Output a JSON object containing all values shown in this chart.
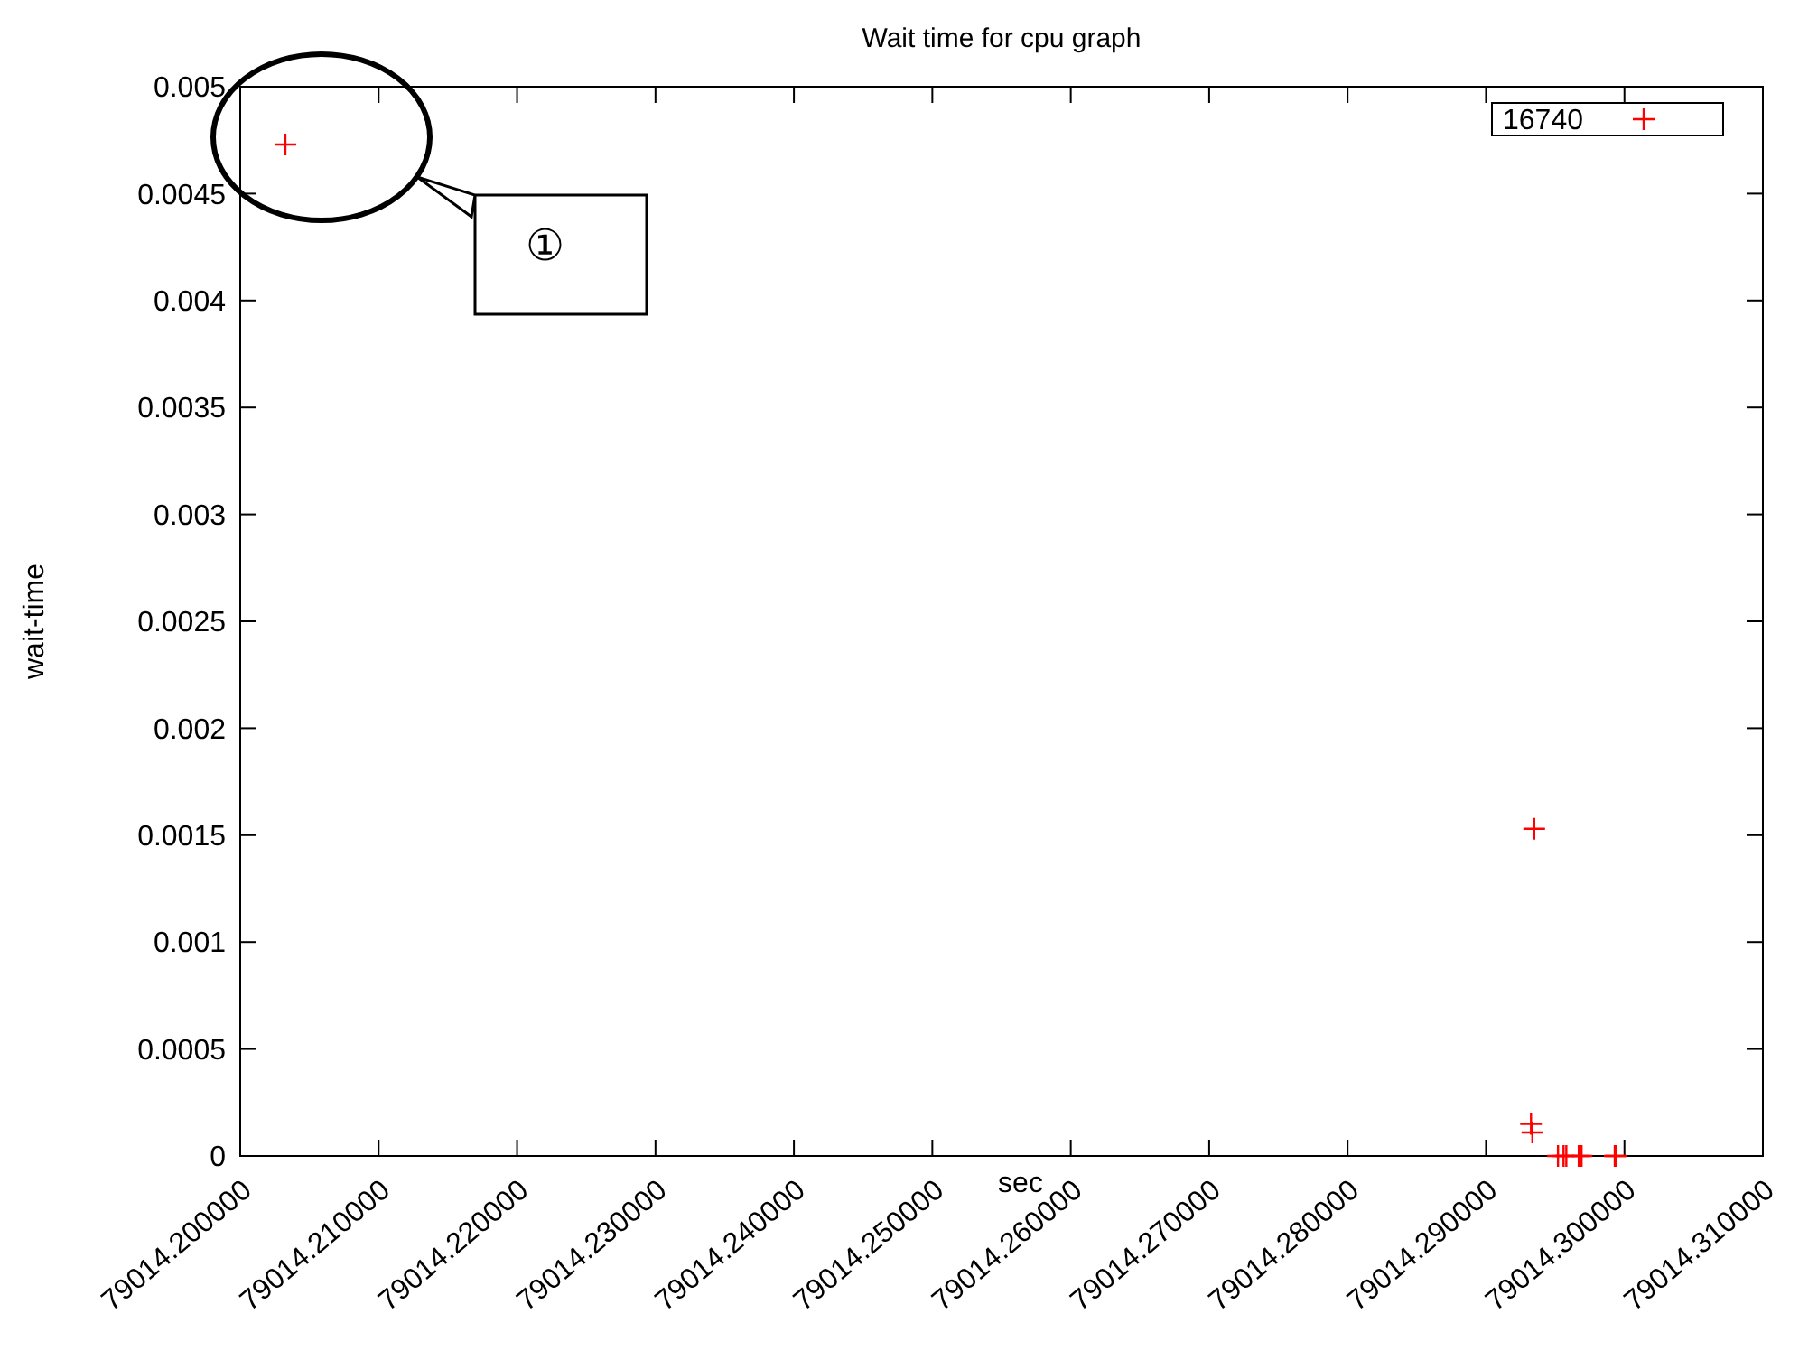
{
  "chart_data": {
    "type": "scatter",
    "title": "Wait time for cpu graph",
    "xlabel": "sec",
    "ylabel": "wait-time",
    "series": [
      {
        "name": "16740",
        "color": "#ff0000",
        "x": [
          79014.20326,
          79014.29348,
          79014.29325,
          79014.29335,
          79014.2952,
          79014.2956,
          79014.2958,
          79014.2967,
          79014.2969,
          79014.2993,
          79014.2994
        ],
        "values": [
          0.00473,
          0.00153,
          0.00015,
          0.00011,
          0,
          0,
          0,
          0,
          0,
          0,
          0
        ]
      }
    ],
    "xlim": [
      79014.2,
      79014.31
    ],
    "xticks": [
      {
        "value": 79014.2,
        "label": "79014.200000"
      },
      {
        "value": 79014.21,
        "label": "79014.210000"
      },
      {
        "value": 79014.22,
        "label": "79014.220000"
      },
      {
        "value": 79014.23,
        "label": "79014.230000"
      },
      {
        "value": 79014.24,
        "label": "79014.240000"
      },
      {
        "value": 79014.25,
        "label": "79014.250000"
      },
      {
        "value": 79014.26,
        "label": "79014.260000"
      },
      {
        "value": 79014.27,
        "label": "79014.270000"
      },
      {
        "value": 79014.28,
        "label": "79014.280000"
      },
      {
        "value": 79014.29,
        "label": "79014.290000"
      },
      {
        "value": 79014.3,
        "label": "79014.300000"
      },
      {
        "value": 79014.31,
        "label": "79014.310000"
      }
    ],
    "ylim": [
      0,
      0.005
    ],
    "yticks": [
      0,
      0.0005,
      0.001,
      0.0015,
      0.002,
      0.0025,
      0.003,
      0.0035,
      0.004,
      0.0045,
      0.005
    ],
    "annotations": [
      "①"
    ],
    "marker": "cross",
    "grid": false,
    "legend": "top right"
  }
}
